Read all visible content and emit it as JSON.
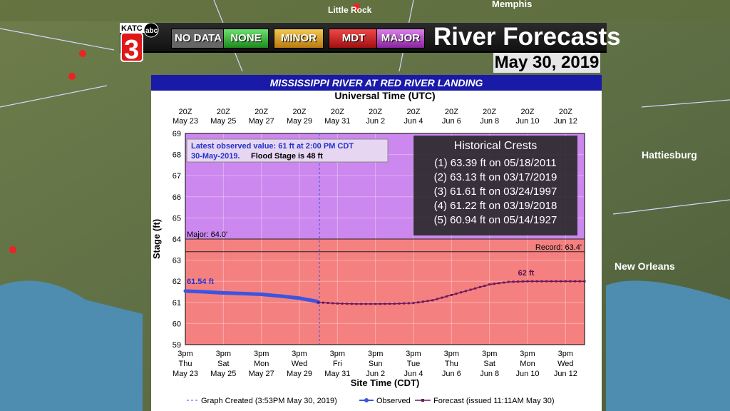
{
  "station": "KATC",
  "network": "abc",
  "channel": "3",
  "legend": [
    {
      "label": "NO DATA",
      "color": "#666666"
    },
    {
      "label": "NONE",
      "color": "#2fa82f"
    },
    {
      "label": "MINOR",
      "color": "#d49a1a"
    },
    {
      "label": "MDT",
      "color": "#d42020"
    },
    {
      "label": "MAJOR",
      "color": "#b43cc8"
    }
  ],
  "headline": "River Forecasts",
  "date": "May 30, 2019",
  "map_labels": [
    "Little Rock",
    "Memphis",
    "Hattiesburg",
    "New Orleans"
  ],
  "crests": {
    "title": "Historical Crests",
    "items": [
      "(1) 63.39 ft on 05/18/2011",
      "(2) 63.13 ft on 03/17/2019",
      "(3) 61.61 ft on 03/24/1997",
      "(4) 61.22 ft on 03/19/2018",
      "(5) 60.94 ft on 05/14/1927"
    ]
  },
  "chart_data": {
    "type": "line",
    "title": "MISSISSIPPI RIVER AT RED RIVER LANDING",
    "top_axis_label": "Universal Time (UTC)",
    "xlabel": "Site Time (CDT)",
    "ylabel": "Stage (ft)",
    "ylim": [
      59,
      69
    ],
    "yticks": [
      59,
      60,
      61,
      62,
      63,
      64,
      65,
      66,
      67,
      68,
      69
    ],
    "top_ticks": [
      [
        "20Z",
        "May 23"
      ],
      [
        "20Z",
        "May 25"
      ],
      [
        "20Z",
        "May 27"
      ],
      [
        "20Z",
        "May 29"
      ],
      [
        "20Z",
        "May 31"
      ],
      [
        "20Z",
        "Jun 2"
      ],
      [
        "20Z",
        "Jun 4"
      ],
      [
        "20Z",
        "Jun 6"
      ],
      [
        "20Z",
        "Jun 8"
      ],
      [
        "20Z",
        "Jun 10"
      ],
      [
        "20Z",
        "Jun 12"
      ]
    ],
    "bottom_ticks": [
      [
        "3pm",
        "Thu",
        "May 23"
      ],
      [
        "3pm",
        "Sat",
        "May 25"
      ],
      [
        "3pm",
        "Mon",
        "May 27"
      ],
      [
        "3pm",
        "Wed",
        "May 29"
      ],
      [
        "3pm",
        "Fri",
        "May 31"
      ],
      [
        "3pm",
        "Sun",
        "Jun 2"
      ],
      [
        "3pm",
        "Tue",
        "Jun 4"
      ],
      [
        "3pm",
        "Thu",
        "Jun 6"
      ],
      [
        "3pm",
        "Sat",
        "Jun 8"
      ],
      [
        "3pm",
        "Mon",
        "Jun 10"
      ],
      [
        "3pm",
        "Wed",
        "Jun 12"
      ]
    ],
    "x_range_days": [
      0,
      21
    ],
    "major_stage": 64.0,
    "major_label": "Major: 64.0'",
    "record_stage": 63.4,
    "record_label": "Record: 63.4'",
    "flood_stage": 48,
    "observed_note_line1": "Latest observed value:  61 ft at 2:00 PM CDT",
    "observed_note_line2": "30-May-2019.",
    "flood_stage_note": "Flood Stage is 48 ft",
    "observed_start_label": "61.54 ft",
    "forecast_peak_label": "62 ft",
    "created_label": "Graph Created (3:53PM May 30, 2019)",
    "observed_legend": "Observed",
    "forecast_legend": "Forecast (issued 11:11AM May 30)",
    "observed": [
      [
        0,
        61.54
      ],
      [
        1,
        61.5
      ],
      [
        2,
        61.45
      ],
      [
        3,
        61.42
      ],
      [
        4,
        61.38
      ],
      [
        5,
        61.3
      ],
      [
        6,
        61.2
      ],
      [
        6.9,
        61.05
      ],
      [
        7,
        61.0
      ]
    ],
    "forecast": [
      [
        7,
        61.0
      ],
      [
        8,
        60.95
      ],
      [
        9,
        60.93
      ],
      [
        10,
        60.93
      ],
      [
        11,
        60.94
      ],
      [
        12,
        60.97
      ],
      [
        13,
        61.1
      ],
      [
        14,
        61.35
      ],
      [
        15,
        61.6
      ],
      [
        16,
        61.85
      ],
      [
        17,
        61.97
      ],
      [
        18,
        62.0
      ],
      [
        19,
        62.0
      ],
      [
        20,
        62.0
      ],
      [
        21,
        62.0
      ]
    ],
    "colors": {
      "major_fill": "#cc88ee",
      "minor_fill": "#f58080",
      "observed": "#3a55e0",
      "forecast": "#6b1a5a"
    }
  }
}
